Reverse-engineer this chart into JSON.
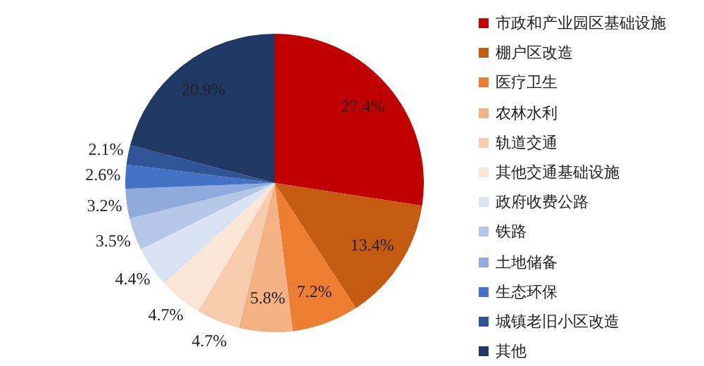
{
  "chart_data": {
    "type": "pie",
    "categories": [
      "市政和产业园区基础设施",
      "棚户区改造",
      "医疗卫生",
      "农林水利",
      "轨道交通",
      "其他交通基础设施",
      "政府收费公路",
      "铁路",
      "土地储备",
      "生态环保",
      "城镇老旧小区改造",
      "其他"
    ],
    "values": [
      27.4,
      13.4,
      7.2,
      5.8,
      4.7,
      4.7,
      4.4,
      3.5,
      3.2,
      2.6,
      2.1,
      20.9
    ],
    "colors": [
      "#c00000",
      "#c55a11",
      "#ed7d31",
      "#f4b183",
      "#f8cbad",
      "#fbe5d6",
      "#dae3f3",
      "#b4c7e7",
      "#8faadc",
      "#4472c4",
      "#2f5597",
      "#1f3864"
    ],
    "value_labels": [
      "27.4%",
      "13.4%",
      "7.2%",
      "5.8%",
      "4.7%",
      "4.7%",
      "4.4%",
      "3.5%",
      "3.2%",
      "2.6%",
      "2.1%",
      "20.9%"
    ],
    "legend": "right"
  }
}
